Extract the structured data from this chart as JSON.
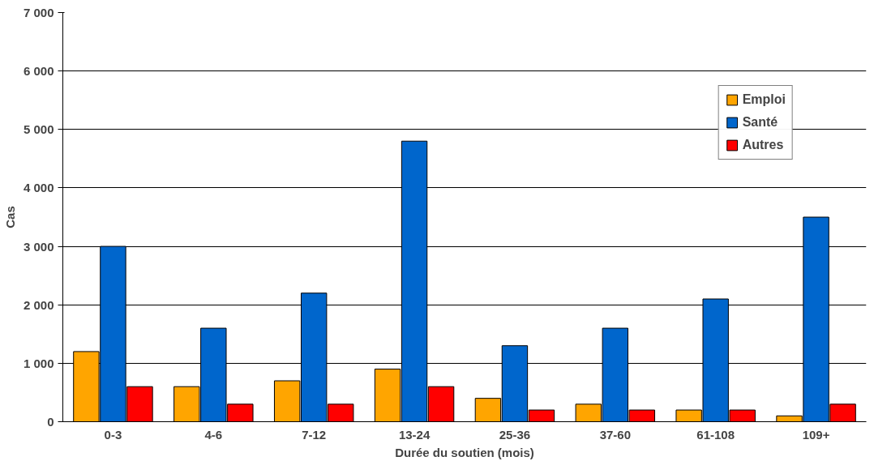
{
  "chart_data": {
    "type": "bar",
    "xlabel": "Durée du soutien (mois)",
    "ylabel": "Cas",
    "categories": [
      "0-3",
      "4-6",
      "7-12",
      "13-24",
      "25-36",
      "37-60",
      "61-108",
      "109+"
    ],
    "series": [
      {
        "name": "Emploi",
        "color": "#ffa500",
        "values": [
          1200,
          600,
          700,
          900,
          400,
          300,
          200,
          100
        ]
      },
      {
        "name": "Santé",
        "color": "#0066cc",
        "values": [
          3000,
          1600,
          2200,
          4800,
          1300,
          1600,
          2100,
          3500
        ]
      },
      {
        "name": "Autres",
        "color": "#ff0000",
        "values": [
          600,
          300,
          300,
          600,
          200,
          200,
          200,
          300
        ]
      }
    ],
    "ylim": [
      0,
      7000
    ],
    "yticks": [
      0,
      {
        "value": 1000,
        "label": "1 000"
      },
      {
        "value": 2000,
        "label": "2 000"
      },
      {
        "value": 3000,
        "label": "3 000"
      },
      {
        "value": 4000,
        "label": "4 000"
      },
      {
        "value": 5000,
        "label": "5 000"
      },
      {
        "value": 6000,
        "label": "6 000"
      },
      {
        "value": 7000,
        "label": "7 000"
      }
    ],
    "grid": "y",
    "legend": "top right"
  }
}
